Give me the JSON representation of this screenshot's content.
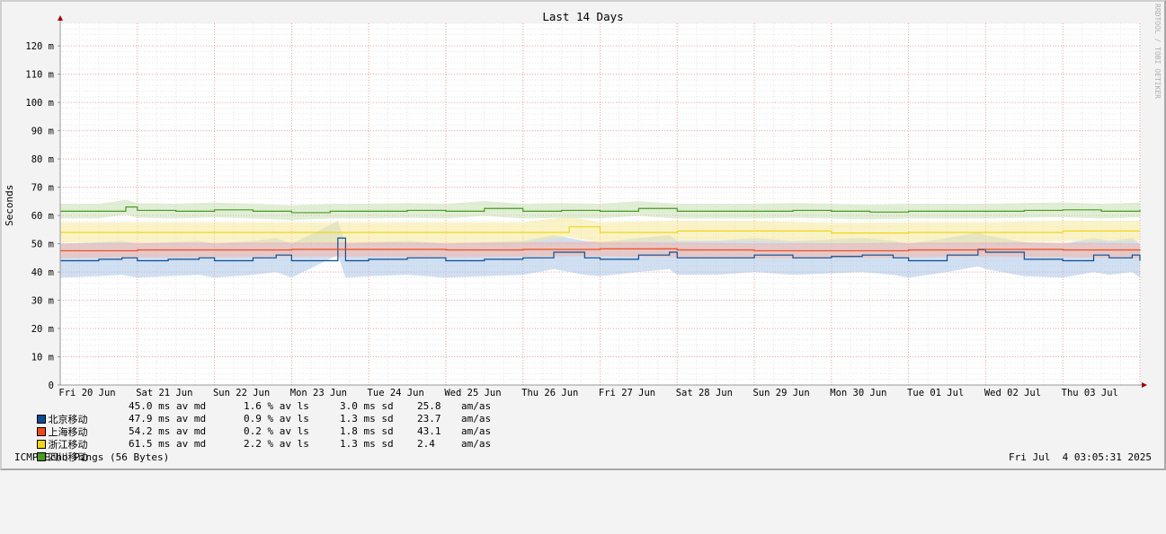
{
  "chart_data": {
    "type": "line",
    "title": "Last 14 Days",
    "ylabel": "Seconds",
    "xlabel": "",
    "ylim": [
      0,
      128
    ],
    "yticks": [
      {
        "value": 0,
        "label": "0"
      },
      {
        "value": 10,
        "label": "10 m"
      },
      {
        "value": 20,
        "label": "20 m"
      },
      {
        "value": 30,
        "label": "30 m"
      },
      {
        "value": 40,
        "label": "40 m"
      },
      {
        "value": 50,
        "label": "50 m"
      },
      {
        "value": 60,
        "label": "60 m"
      },
      {
        "value": 70,
        "label": "70 m"
      },
      {
        "value": 80,
        "label": "80 m"
      },
      {
        "value": 90,
        "label": "90 m"
      },
      {
        "value": 100,
        "label": "100 m"
      },
      {
        "value": 110,
        "label": "110 m"
      },
      {
        "value": 120,
        "label": "120 m"
      }
    ],
    "xticks": [
      "Fri 20 Jun",
      "Sat 21 Jun",
      "Sun 22 Jun",
      "Mon 23 Jun",
      "Tue 24 Jun",
      "Wed 25 Jun",
      "Thu 26 Jun",
      "Fri 27 Jun",
      "Sat 28 Jun",
      "Sun 29 Jun",
      "Mon 30 Jun",
      "Tue 01 Jul",
      "Wed 02 Jul",
      "Thu 03 Jul"
    ],
    "x_unit": "days",
    "x_range": [
      0,
      14
    ],
    "grid": true,
    "legend_position": "bottom-left",
    "series": [
      {
        "name": "北京移动",
        "color": "#0a4d94",
        "avg": "45.0 ms av md",
        "loss": "1.6 % av ls",
        "sd": "3.0 ms sd",
        "amas": "25.8",
        "amas_unit": "am/as",
        "x": [
          0,
          0.5,
          0.8,
          1.0,
          1.4,
          1.8,
          2.0,
          2.5,
          2.8,
          3.0,
          3.6,
          3.7,
          4.0,
          4.5,
          5.0,
          5.5,
          6.0,
          6.4,
          6.8,
          7.0,
          7.5,
          7.9,
          8.0,
          8.5,
          9.0,
          9.5,
          10.0,
          10.4,
          10.8,
          11.0,
          11.5,
          11.9,
          12.0,
          12.5,
          13.0,
          13.4,
          13.6,
          13.9,
          14.0
        ],
        "y": [
          44,
          44.5,
          45,
          44,
          44.5,
          45,
          44,
          45,
          46,
          44,
          52,
          44,
          44.5,
          45,
          44,
          44.5,
          45,
          47,
          45,
          44.5,
          46,
          47,
          45,
          45,
          46,
          45,
          45.5,
          46,
          45,
          44,
          46,
          48,
          47,
          44.5,
          44,
          46,
          45,
          46,
          44
        ]
      },
      {
        "name": "上海移动",
        "color": "#f04a1c",
        "avg": "47.9 ms av md",
        "loss": "0.9 % av ls",
        "sd": "1.3 ms sd",
        "amas": "23.7",
        "amas_unit": "am/as",
        "x": [
          0,
          1,
          2,
          3,
          4,
          5,
          6,
          7,
          8,
          9,
          10,
          11,
          12,
          13,
          14
        ],
        "y": [
          47.5,
          47.8,
          47.8,
          48,
          48,
          47.8,
          48,
          48.2,
          47.8,
          47.5,
          47.5,
          47.8,
          48,
          47.8,
          47.5
        ]
      },
      {
        "name": "浙江移动",
        "color": "#f2d617",
        "avg": "54.2 ms av md",
        "loss": "0.2 % av ls",
        "sd": "1.8 ms sd",
        "amas": "43.1",
        "amas_unit": "am/as",
        "x": [
          0,
          1,
          2,
          3,
          4,
          5,
          6,
          6.6,
          7,
          8,
          9,
          10,
          11,
          12,
          13,
          14
        ],
        "y": [
          54,
          54,
          54,
          54,
          54,
          54,
          54,
          56,
          54,
          54.5,
          54.5,
          53.8,
          54,
          54,
          54.5,
          54.5
        ]
      },
      {
        "name": "四川移动",
        "color": "#4a9a22",
        "avg": "61.5 ms av md",
        "loss": "2.2 % av ls",
        "sd": "1.3 ms sd",
        "amas": "2.4",
        "amas_unit": "am/as",
        "x": [
          0,
          0.5,
          0.85,
          1.0,
          1.5,
          2.0,
          2.5,
          3.0,
          3.5,
          4.0,
          4.5,
          5.0,
          5.5,
          6.0,
          6.5,
          7.0,
          7.5,
          8.0,
          8.5,
          9.0,
          9.5,
          10.0,
          10.5,
          11.0,
          11.5,
          12.0,
          12.5,
          13.0,
          13.5,
          14.0
        ],
        "y": [
          61.5,
          61.5,
          63,
          61.8,
          61.5,
          62,
          61.5,
          61,
          61.5,
          61.5,
          61.8,
          61.5,
          62.5,
          61.5,
          61.8,
          61.5,
          62.5,
          61.5,
          61.5,
          61.5,
          61.8,
          61.5,
          61.2,
          61.5,
          61.5,
          61.5,
          61.8,
          62,
          61.5,
          62
        ]
      }
    ]
  },
  "footer": {
    "left": "ICMP Echo Pings (56 Bytes)",
    "right": "Fri Jul  4 03:05:31 2025"
  },
  "credit": "RRDTOOL / TOBI OETIKER"
}
